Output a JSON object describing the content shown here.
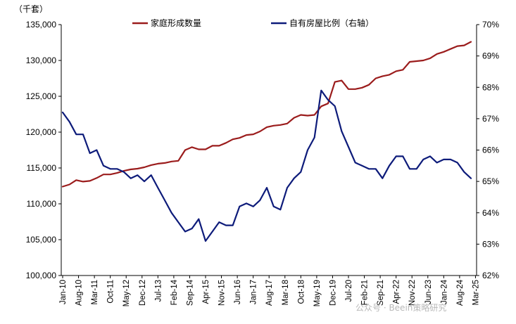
{
  "chart_data": {
    "type": "line",
    "unit_label": "（千套）",
    "x_tick_labels": [
      "Jan-10",
      "Aug-10",
      "Mar-11",
      "Oct-11",
      "May-12",
      "Dec-12",
      "Jul-13",
      "Feb-14",
      "Sep-14",
      "Apr-15",
      "Nov-15",
      "Jun-16",
      "Jan-17",
      "Aug-17",
      "Mar-18",
      "Oct-18",
      "May-19",
      "Dec-19",
      "Jul-20",
      "Feb-21",
      "Sep-21",
      "Apr-22",
      "Nov-22",
      "Jun-23",
      "Jan-24",
      "Aug-24",
      "Mar-25"
    ],
    "y_left": {
      "min": 100000,
      "max": 135000,
      "ticks": [
        "100,000",
        "105,000",
        "110,000",
        "115,000",
        "120,000",
        "125,000",
        "130,000",
        "135,000"
      ]
    },
    "y_right": {
      "min": 62,
      "max": 70,
      "ticks": [
        "62%",
        "63%",
        "64%",
        "65%",
        "66%",
        "67%",
        "68%",
        "69%",
        "70%"
      ]
    },
    "legend_position": "top",
    "grid": false,
    "series": [
      {
        "name": "家庭形成数量",
        "axis": "left",
        "color": "#9b1c1c",
        "x": [
          "2010Q1",
          "2010Q2",
          "2010Q3",
          "2010Q4",
          "2011Q1",
          "2011Q2",
          "2011Q3",
          "2011Q4",
          "2012Q1",
          "2012Q2",
          "2012Q3",
          "2012Q4",
          "2013Q1",
          "2013Q2",
          "2013Q3",
          "2013Q4",
          "2014Q1",
          "2014Q2",
          "2014Q3",
          "2014Q4",
          "2015Q1",
          "2015Q2",
          "2015Q3",
          "2015Q4",
          "2016Q1",
          "2016Q2",
          "2016Q3",
          "2016Q4",
          "2017Q1",
          "2017Q2",
          "2017Q3",
          "2017Q4",
          "2018Q1",
          "2018Q2",
          "2018Q3",
          "2018Q4",
          "2019Q1",
          "2019Q2",
          "2019Q3",
          "2019Q4",
          "2020Q1",
          "2020Q2",
          "2020Q3",
          "2020Q4",
          "2021Q1",
          "2021Q2",
          "2021Q3",
          "2021Q4",
          "2022Q1",
          "2022Q2",
          "2022Q3",
          "2022Q4",
          "2023Q1",
          "2023Q2",
          "2023Q3",
          "2023Q4",
          "2024Q1",
          "2024Q2",
          "2024Q3",
          "2024Q4",
          "2025Q1"
        ],
        "values": [
          112400,
          112700,
          113300,
          113100,
          113200,
          113600,
          114100,
          114100,
          114300,
          114600,
          114800,
          114900,
          115100,
          115400,
          115600,
          115700,
          115900,
          116000,
          117500,
          117900,
          117600,
          117600,
          118100,
          118100,
          118500,
          119000,
          119200,
          119600,
          119700,
          120100,
          120700,
          120900,
          121000,
          121200,
          122000,
          122400,
          122300,
          122400,
          123600,
          124000,
          127000,
          127200,
          126000,
          126000,
          126200,
          126600,
          127500,
          127800,
          128000,
          128500,
          128700,
          129800,
          129900,
          130000,
          130300,
          130900,
          131200,
          131600,
          132000,
          132100,
          132600
        ]
      },
      {
        "name": "自有房屋比例（右轴）",
        "axis": "right",
        "color": "#0d1b7a",
        "x": [
          "2010Q1",
          "2010Q2",
          "2010Q3",
          "2010Q4",
          "2011Q1",
          "2011Q2",
          "2011Q3",
          "2011Q4",
          "2012Q1",
          "2012Q2",
          "2012Q3",
          "2012Q4",
          "2013Q1",
          "2013Q2",
          "2013Q3",
          "2013Q4",
          "2014Q1",
          "2014Q2",
          "2014Q3",
          "2014Q4",
          "2015Q1",
          "2015Q2",
          "2015Q3",
          "2015Q4",
          "2016Q1",
          "2016Q2",
          "2016Q3",
          "2016Q4",
          "2017Q1",
          "2017Q2",
          "2017Q3",
          "2017Q4",
          "2018Q1",
          "2018Q2",
          "2018Q3",
          "2018Q4",
          "2019Q1",
          "2019Q2",
          "2019Q3",
          "2019Q4",
          "2020Q1",
          "2020Q2",
          "2020Q3",
          "2020Q4",
          "2021Q1",
          "2021Q2",
          "2021Q3",
          "2021Q4",
          "2022Q1",
          "2022Q2",
          "2022Q3",
          "2022Q4",
          "2023Q1",
          "2023Q2",
          "2023Q3",
          "2023Q4",
          "2024Q1",
          "2024Q2",
          "2024Q3",
          "2024Q4",
          "2025Q1"
        ],
        "values": [
          67.2,
          66.9,
          66.5,
          66.5,
          65.9,
          66.0,
          65.5,
          65.4,
          65.4,
          65.3,
          65.1,
          65.2,
          65.0,
          65.2,
          64.8,
          64.4,
          64.0,
          63.7,
          63.4,
          63.5,
          63.8,
          63.1,
          63.4,
          63.7,
          63.6,
          63.6,
          64.2,
          64.3,
          64.2,
          64.4,
          64.8,
          64.2,
          64.1,
          64.8,
          65.1,
          65.3,
          66.0,
          66.4,
          67.9,
          67.6,
          67.4,
          66.6,
          66.1,
          65.6,
          65.5,
          65.4,
          65.4,
          65.1,
          65.5,
          65.8,
          65.8,
          65.4,
          65.4,
          65.7,
          65.8,
          65.6,
          65.7,
          65.7,
          65.6,
          65.3,
          65.1
        ]
      }
    ],
    "watermark": "公众号 · Beein策略研究"
  }
}
